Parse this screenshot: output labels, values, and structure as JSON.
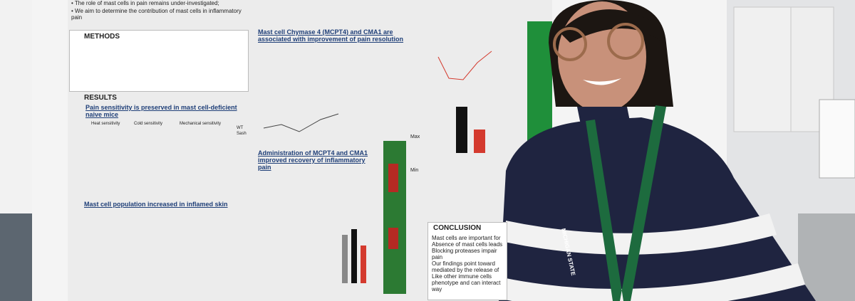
{
  "poster": {
    "intro": [
      "The role of mast cells in pain remains under-investigated;",
      "We aim to determine the contribution of mast cells in inflammatory pain"
    ],
    "methods": {
      "title": "METHODS"
    },
    "results": {
      "title": "RESULTS",
      "subtitle": "Pain sensitivity is preserved in mast cell-deficient naive mice",
      "panels": [
        "Heat sensitivity",
        "Cold sensitivity",
        "Mechanical sensitivity"
      ],
      "legend": [
        "WT",
        "Sash"
      ]
    },
    "skin": {
      "title": "Mast cell population increased in inflamed skin"
    },
    "chymase": {
      "title": "Mast cell Chymase 4 (MCPT4) and CMA1 are associated with improvement of pain resolution"
    },
    "administration": {
      "title": "Administration of MCPT4 and CMA1 improved recovery of inflammatory pain"
    },
    "heatmap": {
      "max": "Max",
      "min": "Min"
    },
    "conclusion": {
      "title": "CONCLUSION",
      "lines": [
        "Mast cells are important for",
        "Absence of mast cells leads",
        "Blocking proteases impair",
        "pain",
        "Our findings point toward",
        "mediated by the release of",
        "Like other immune cells",
        "phenotype and can interact",
        "way"
      ]
    }
  },
  "lanyard": "MICHIGAN STATE"
}
